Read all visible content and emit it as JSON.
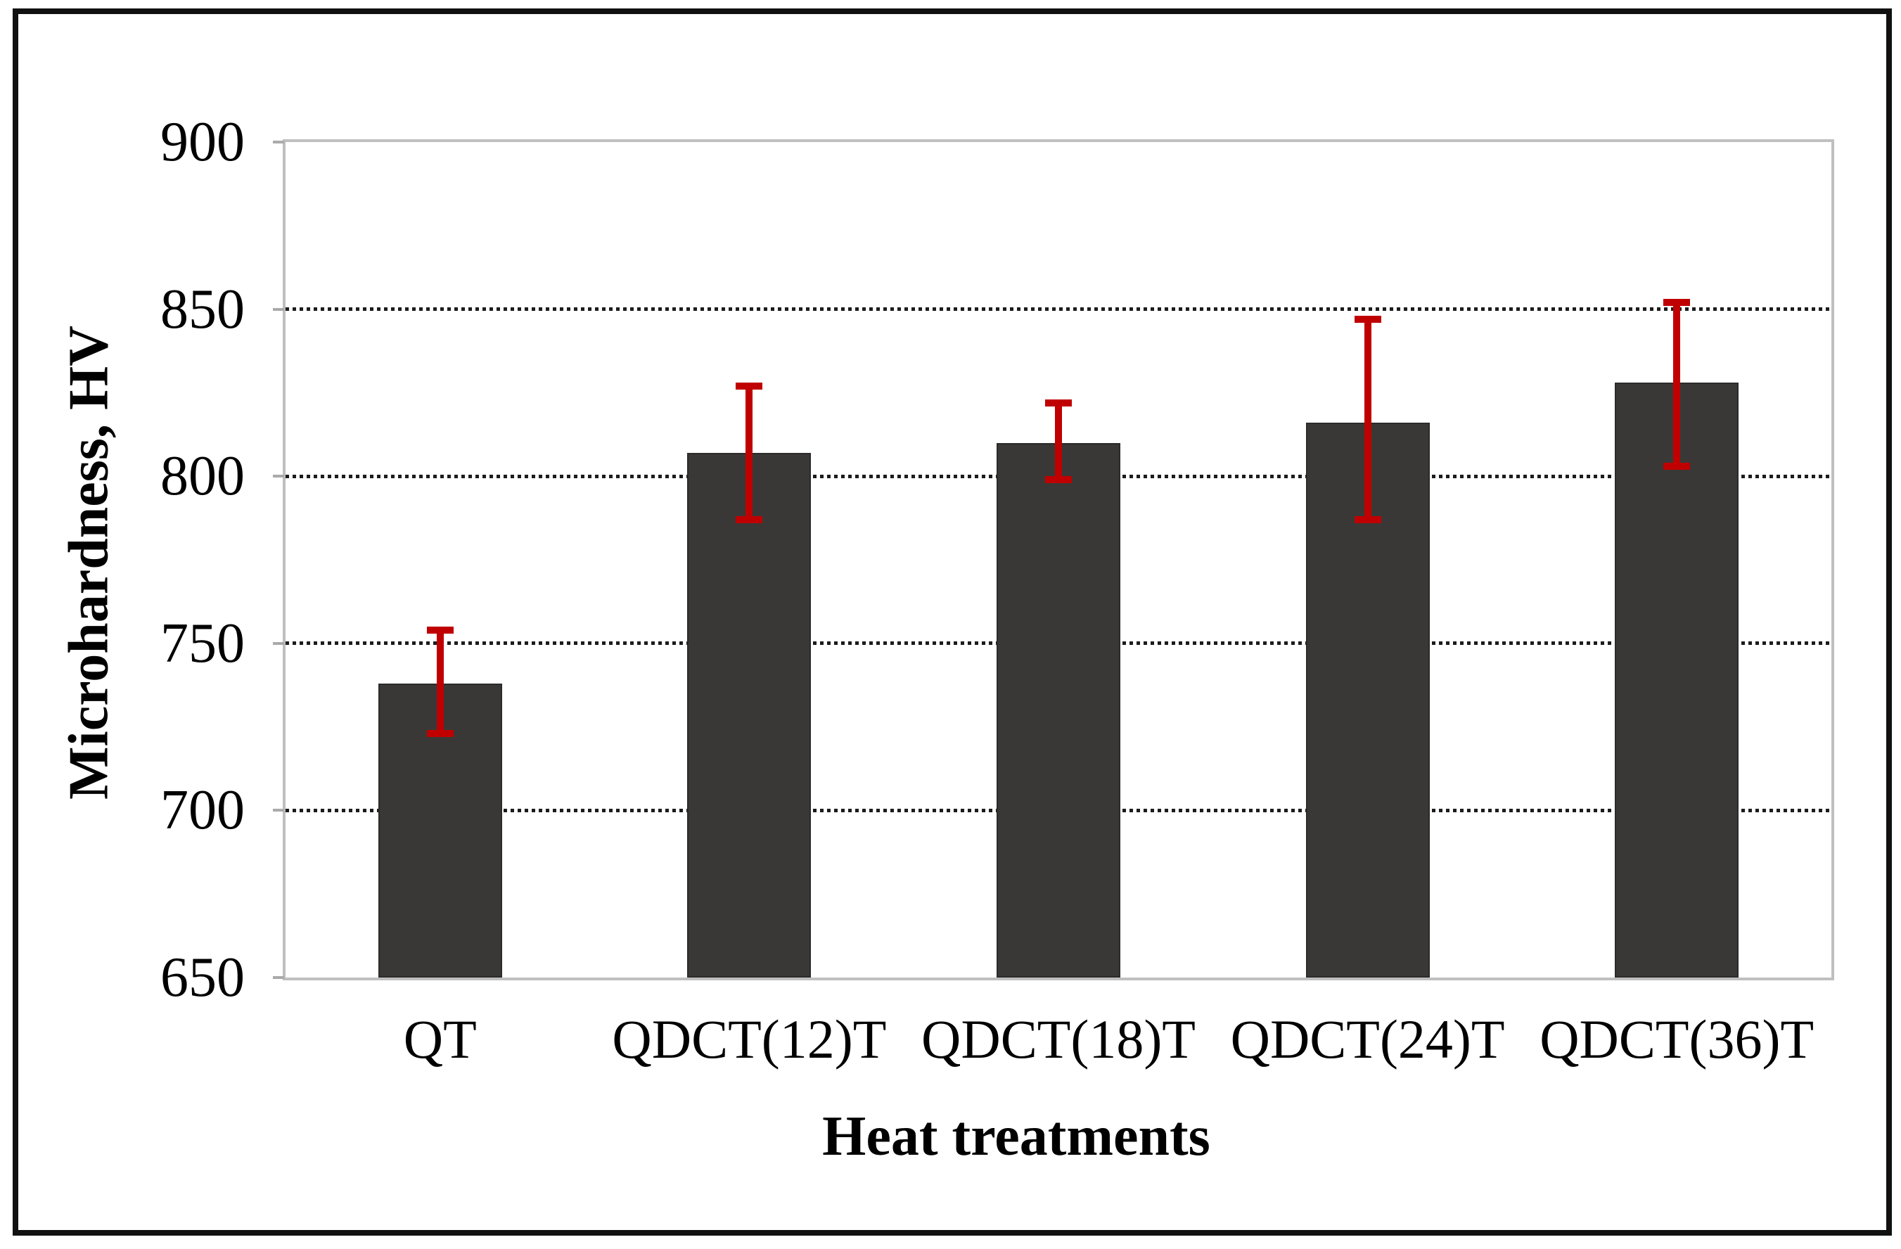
{
  "chart_data": {
    "type": "bar",
    "title": "",
    "xlabel": "Heat treatments",
    "ylabel": "Microhardness, HV",
    "categories": [
      "QT",
      "QDCT(12)T",
      "QDCT(18)T",
      "QDCT(24)T",
      "QDCT(36)T"
    ],
    "series": [
      {
        "name": "Microhardness",
        "values": [
          738,
          807,
          810,
          816,
          828
        ],
        "error_plus": [
          16,
          20,
          12,
          31,
          24
        ],
        "error_minus": [
          15,
          20,
          11,
          29,
          25
        ]
      }
    ],
    "ylim": [
      650,
      900
    ],
    "yticks": [
      900,
      850,
      800,
      750,
      700,
      650
    ],
    "gridlines": [
      850,
      800,
      750,
      700
    ],
    "grid_style": "dotted",
    "legend": "none",
    "bar_color": "#3a3836",
    "error_bar_color": "#c00000",
    "plot_border_color": "#bfbfbf",
    "figure_border_color": "#111111"
  }
}
